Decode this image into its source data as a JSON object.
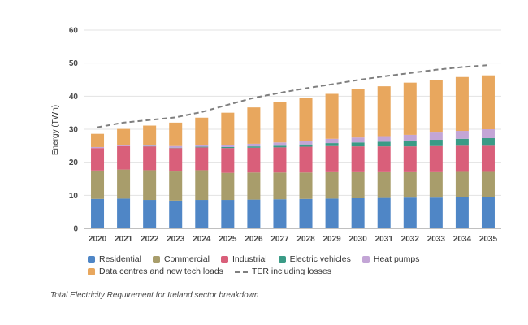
{
  "chart_data": {
    "type": "bar",
    "stacked": true,
    "ylabel": "Energy (TWh)",
    "ylim": [
      0,
      60
    ],
    "yticks": [
      0,
      10,
      20,
      30,
      40,
      50,
      60
    ],
    "categories": [
      "2020",
      "2021",
      "2022",
      "2023",
      "2024",
      "2025",
      "2026",
      "2027",
      "2028",
      "2029",
      "2030",
      "2031",
      "2032",
      "2033",
      "2034",
      "2035"
    ],
    "series": [
      {
        "name": "Residential",
        "color": "#4f86c6",
        "values": [
          8.9,
          9.0,
          8.6,
          8.4,
          8.6,
          8.6,
          8.7,
          8.8,
          8.9,
          9.0,
          9.1,
          9.2,
          9.3,
          9.3,
          9.4,
          9.5
        ]
      },
      {
        "name": "Commercial",
        "color": "#a89d6b",
        "values": [
          8.6,
          8.8,
          9.0,
          8.8,
          9.0,
          8.2,
          8.2,
          8.1,
          8.0,
          8.0,
          7.9,
          7.8,
          7.7,
          7.7,
          7.7,
          7.6
        ]
      },
      {
        "name": "Industrial",
        "color": "#d95f7a",
        "values": [
          6.8,
          7.1,
          7.2,
          7.1,
          6.9,
          7.5,
          7.5,
          7.6,
          7.8,
          7.9,
          7.8,
          7.8,
          7.8,
          7.9,
          7.9,
          7.9
        ]
      },
      {
        "name": "Electric vehicles",
        "color": "#3a9b86",
        "values": [
          0.0,
          0.0,
          0.1,
          0.1,
          0.2,
          0.3,
          0.4,
          0.5,
          0.7,
          0.9,
          1.2,
          1.4,
          1.6,
          1.9,
          2.1,
          2.3
        ]
      },
      {
        "name": "Heat pumps",
        "color": "#c3a5d6",
        "values": [
          0.3,
          0.3,
          0.4,
          0.5,
          0.6,
          0.7,
          0.8,
          1.0,
          1.1,
          1.3,
          1.5,
          1.7,
          1.9,
          2.2,
          2.4,
          2.7
        ]
      },
      {
        "name": "Data centres and new tech loads",
        "color": "#e8a75e",
        "values": [
          4.0,
          4.9,
          5.8,
          7.1,
          8.2,
          9.7,
          11.0,
          12.2,
          13.0,
          13.6,
          14.6,
          15.1,
          15.8,
          16.0,
          16.3,
          16.3
        ]
      }
    ],
    "line": {
      "name": "TER including losses",
      "color": "#7f7f7f",
      "values": [
        30.6,
        32.0,
        32.8,
        33.6,
        35.2,
        37.4,
        39.5,
        41.0,
        42.4,
        43.6,
        44.9,
        46.0,
        47.0,
        48.0,
        48.8,
        49.4
      ]
    }
  },
  "legend": {
    "residential": "Residential",
    "commercial": "Commercial",
    "industrial": "Industrial",
    "ev": "Electric vehicles",
    "heat_pumps": "Heat pumps",
    "data_centres": "Data centres and new tech loads",
    "ter": "TER including losses"
  },
  "caption": "Total Electricity Requirement for Ireland sector breakdown"
}
